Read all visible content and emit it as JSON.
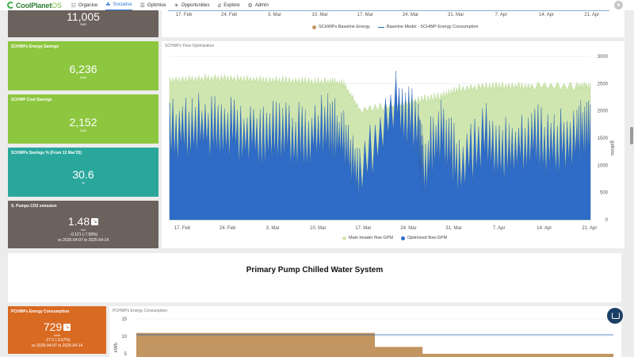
{
  "nav": {
    "brand": "CoolPlanet",
    "brand_suffix": "OS",
    "items": [
      {
        "label": "Organise",
        "icon": "org-chart-icon"
      },
      {
        "label": "Socialise",
        "icon": "network-icon",
        "active": true
      },
      {
        "label": "Optimise",
        "icon": "document-icon"
      },
      {
        "label": "Opportunities",
        "icon": "lightbulb-icon"
      },
      {
        "label": "Explore",
        "icon": "binoculars-icon"
      },
      {
        "label": "Admin",
        "icon": "gear-icon"
      }
    ]
  },
  "cards": {
    "sar": {
      "value": "11,005",
      "unit": "SAR"
    },
    "energy": {
      "title": "SCHWPs Energy Savings",
      "value": "6,236",
      "unit": "kWh"
    },
    "cost": {
      "title": "SCHWP Cost Savings",
      "value": "2,152",
      "unit": "SAR"
    },
    "pct": {
      "title": "SCHWPs Savings % (From 13 Mar'25)",
      "value": "30.6",
      "unit": "%"
    },
    "co2": {
      "title": "S. Pumps CO2 emission",
      "value": "1.48",
      "unit": "ton",
      "delta": "- 0.121 (-7.58%)",
      "range": "vs 2025-04-07 to 2025-04-14"
    },
    "pcons": {
      "title": "PCHWPs Energy Consumption",
      "value": "729",
      "unit": "kWh",
      "delta": "- 27.0 (-3.57%)",
      "range": "vs 2025-04-07 to 2025-04-14"
    }
  },
  "colors": {
    "green": "#8dc63f",
    "teal": "#2aa79b",
    "taupe": "#6b615d",
    "orange": "#d96a22",
    "flow_green": "#cfe6b0",
    "flow_blue": "#2f6cc8",
    "brown": "#c39560"
  },
  "top_chart": {
    "x_ticks": [
      "17. Feb",
      "24. Feb",
      "3. Mar",
      "10. Mar",
      "17. Mar",
      "24. Mar",
      "31. Mar",
      "7. Apr",
      "14. Apr",
      "21. Apr"
    ],
    "legend": [
      "SCHWPs Baseline Energy",
      "Baseline Model - SCHWP Energy Consumption"
    ]
  },
  "chart_data": [
    {
      "type": "area",
      "title": "SCHWPs Flow Optimization",
      "ylabel": "gallons",
      "x": [
        "17. Feb",
        "24. Feb",
        "3. Mar",
        "10. Mar",
        "17. Mar",
        "24. Mar",
        "31. Mar",
        "7. Apr",
        "14. Apr",
        "21. Apr"
      ],
      "x_range": [
        0,
        9.3
      ],
      "ylim": [
        0,
        3000
      ],
      "y_ticks": [
        0,
        500,
        1000,
        1500,
        2000,
        2500,
        3000
      ],
      "grid": true,
      "legend": "bottom",
      "series": [
        {
          "name": "Main header flow GPM",
          "color": "#cfe6b0",
          "values": [
            [
              0,
              2560
            ],
            [
              0.5,
              2580
            ],
            [
              1,
              2600
            ],
            [
              1.5,
              2590
            ],
            [
              2,
              2560
            ],
            [
              2.5,
              2550
            ],
            [
              3,
              2540
            ],
            [
              3.5,
              2530
            ],
            [
              3.85,
              2500
            ],
            [
              4.2,
              2000
            ],
            [
              5,
              2100
            ],
            [
              5.5,
              2200
            ],
            [
              6,
              2250
            ],
            [
              6.4,
              2400
            ],
            [
              7,
              2450
            ],
            [
              7.5,
              2450
            ],
            [
              8,
              2450
            ],
            [
              9,
              2450
            ],
            [
              9.3,
              2450
            ]
          ]
        },
        {
          "name": "Optimized flow:GPM",
          "color": "#2f6cc8",
          "values": [
            [
              0,
              1600
            ],
            [
              0.5,
              1700
            ],
            [
              1,
              1650
            ],
            [
              1.5,
              1600
            ],
            [
              2,
              1550
            ],
            [
              2.5,
              1600
            ],
            [
              3,
              1500
            ],
            [
              3.5,
              1700
            ],
            [
              3.85,
              1450
            ],
            [
              4.2,
              800
            ],
            [
              5,
              2200
            ],
            [
              5.5,
              1600
            ],
            [
              5.6,
              1000
            ],
            [
              6,
              1600
            ],
            [
              6.4,
              1000
            ],
            [
              7,
              1500
            ],
            [
              7.5,
              1200
            ],
            [
              8,
              1500
            ],
            [
              8.5,
              1400
            ],
            [
              9,
              1500
            ],
            [
              9.3,
              1700
            ]
          ]
        }
      ]
    },
    {
      "type": "area",
      "title": "PCHWPs Energy Consumption",
      "ylabel": "kWh",
      "y_ticks": [
        5,
        10,
        15
      ],
      "series": [
        {
          "name": "",
          "color": "#c39560",
          "values": [
            11,
            11,
            11,
            11,
            11,
            7,
            5,
            5,
            5,
            5
          ]
        }
      ]
    }
  ],
  "flow_legend": [
    "Main header flow GPM",
    "Optimized flow:GPM"
  ],
  "banner": {
    "title": "Primary Pump Chilled Water System"
  }
}
